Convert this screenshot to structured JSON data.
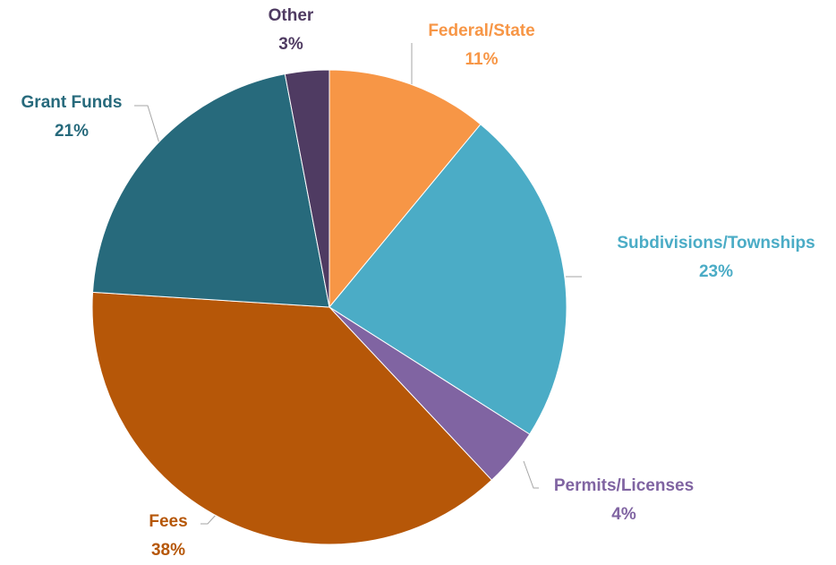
{
  "chart_data": {
    "type": "pie",
    "categories": [
      "Federal/State",
      "Subdivisions/Townships",
      "Permits/Licenses",
      "Fees",
      "Grant Funds",
      "Other"
    ],
    "values": [
      11,
      23,
      4,
      38,
      21,
      3
    ],
    "value_labels": [
      "11%",
      "23%",
      "4%",
      "38%",
      "21%",
      "3%"
    ],
    "colors": [
      "#F79646",
      "#4BACC6",
      "#8064A2",
      "#B65708",
      "#276A7C",
      "#4F3B62"
    ]
  }
}
